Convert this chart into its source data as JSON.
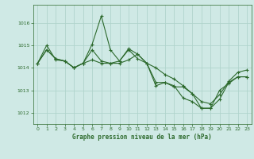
{
  "title": "Graphe pression niveau de la mer (hPa)",
  "bg_color": "#cfe9e5",
  "grid_color": "#b0d4cc",
  "line_color": "#2d6a2d",
  "xlim": [
    -0.5,
    23.5
  ],
  "ylim": [
    1011.5,
    1016.8
  ],
  "yticks": [
    1012,
    1013,
    1014,
    1015,
    1016
  ],
  "xticks": [
    0,
    1,
    2,
    3,
    4,
    5,
    6,
    7,
    8,
    9,
    10,
    11,
    12,
    13,
    14,
    15,
    16,
    17,
    18,
    19,
    20,
    21,
    22,
    23
  ],
  "series1": {
    "x": [
      0,
      1,
      2,
      3,
      4,
      5,
      6,
      7,
      8,
      9,
      10,
      11,
      12,
      13,
      14,
      15,
      16,
      17,
      18,
      19,
      20,
      21,
      22,
      23
    ],
    "y": [
      1014.2,
      1014.8,
      1014.4,
      1014.3,
      1014.0,
      1014.2,
      1015.05,
      1016.3,
      1014.8,
      1014.3,
      1014.85,
      1014.6,
      1014.2,
      1013.35,
      1013.35,
      1013.15,
      1013.15,
      1012.85,
      1012.2,
      1012.2,
      1012.6,
      1013.35,
      1013.6,
      1013.6
    ]
  },
  "series2": {
    "x": [
      0,
      1,
      2,
      3,
      4,
      5,
      6,
      7,
      8,
      9,
      10,
      11,
      12,
      13,
      14,
      15,
      16,
      17,
      18,
      19,
      20,
      21,
      22,
      23
    ],
    "y": [
      1014.2,
      1015.0,
      1014.35,
      1014.3,
      1014.0,
      1014.2,
      1014.35,
      1014.2,
      1014.2,
      1014.2,
      1014.35,
      1014.6,
      1014.2,
      1014.0,
      1013.7,
      1013.5,
      1013.2,
      1012.85,
      1012.5,
      1012.4,
      1012.8,
      1013.4,
      1013.8,
      1013.9
    ]
  },
  "series3": {
    "x": [
      0,
      1,
      2,
      3,
      4,
      5,
      6,
      7,
      8,
      9,
      10,
      11,
      12,
      13,
      14,
      15,
      16,
      17,
      18,
      19,
      20,
      21,
      22,
      23
    ],
    "y": [
      1014.2,
      1014.8,
      1014.4,
      1014.3,
      1014.0,
      1014.2,
      1014.8,
      1014.3,
      1014.2,
      1014.3,
      1014.8,
      1014.4,
      1014.2,
      1013.2,
      1013.35,
      1013.2,
      1012.65,
      1012.5,
      1012.2,
      1012.2,
      1013.0,
      1013.3,
      1013.6,
      1013.6
    ]
  }
}
